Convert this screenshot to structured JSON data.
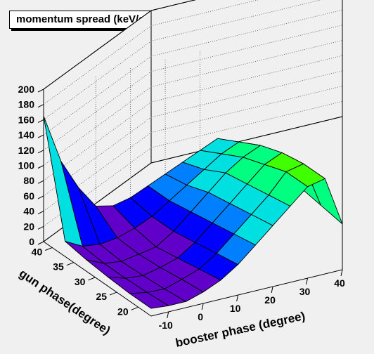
{
  "chart_data": {
    "type": "surface",
    "title": "momentum spread (keV/c)",
    "zlabel": "",
    "zticks": [
      "0",
      "20",
      "40",
      "60",
      "80",
      "100",
      "120",
      "140",
      "160",
      "180",
      "200"
    ],
    "zlim": [
      0,
      200
    ],
    "xlabel": "booster phase (degree)",
    "xticks": [
      "-10",
      "0",
      "10",
      "20",
      "30",
      "40"
    ],
    "xlim": [
      -15,
      40
    ],
    "ylabel": "gun phase(degree)",
    "yticks": [
      "20",
      "25",
      "30",
      "35",
      "40"
    ],
    "ylim": [
      17,
      42
    ],
    "grid": true,
    "booster_phase": [
      -15,
      -10,
      -5,
      0,
      5,
      10,
      15,
      20,
      25,
      30,
      35,
      40
    ],
    "gun_phase": [
      17,
      22,
      27,
      32,
      37,
      42
    ],
    "z": [
      [
        10,
        8,
        8,
        15,
        25,
        40,
        60,
        80,
        100,
        120,
        125,
        60
      ],
      [
        10,
        6,
        5,
        12,
        20,
        35,
        55,
        75,
        95,
        120,
        125,
        65
      ],
      [
        12,
        5,
        3,
        8,
        15,
        30,
        50,
        70,
        90,
        110,
        120,
        70
      ],
      [
        15,
        5,
        2,
        6,
        10,
        25,
        45,
        65,
        85,
        100,
        110,
        65
      ],
      [
        20,
        8,
        5,
        8,
        15,
        25,
        40,
        55,
        70,
        85,
        95,
        60
      ],
      [
        165,
        100,
        60,
        30,
        25,
        30,
        40,
        50,
        60,
        70,
        80,
        60
      ]
    ],
    "colors": [
      "#6000c8",
      "#0000ff",
      "#0080ff",
      "#00e0e0",
      "#00ff80",
      "#40ff00",
      "#ffff00",
      "#ffa000",
      "#ff3000"
    ]
  }
}
